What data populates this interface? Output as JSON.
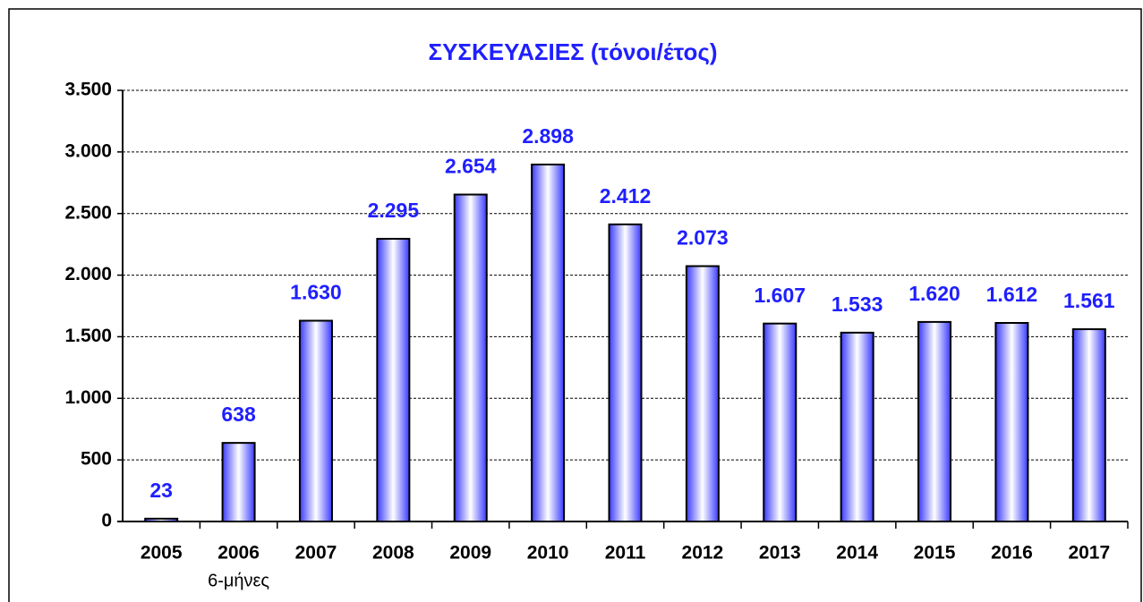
{
  "chart_data": {
    "type": "bar",
    "title": "ΣΥΣΚΕΥΑΣΙΕΣ (τόνοι/έτος)",
    "categories": [
      "2005",
      "2006",
      "2007",
      "2008",
      "2009",
      "2010",
      "2011",
      "2012",
      "2013",
      "2014",
      "2015",
      "2016",
      "2017"
    ],
    "category_note": "6-μήνες",
    "values": [
      23,
      638,
      1630,
      2295,
      2654,
      2898,
      2412,
      2073,
      1607,
      1533,
      1620,
      1612,
      1561
    ],
    "value_labels": [
      "23",
      "638",
      "1.630",
      "2.295",
      "2.654",
      "2.898",
      "2.412",
      "2.073",
      "1.607",
      "1.533",
      "1.620",
      "1.612",
      "1.561"
    ],
    "color": "#3a3aff",
    "ylim": [
      0,
      3500
    ],
    "yticks": [
      0,
      500,
      {
        "value": 1000,
        "label": "1.000"
      },
      {
        "value": 1500,
        "label": "1.500"
      },
      {
        "value": 2000,
        "label": "2.000"
      },
      {
        "value": 2500,
        "label": "2.500"
      },
      {
        "value": 3000,
        "label": "3.000"
      },
      {
        "value": 3500,
        "label": "3.500"
      }
    ],
    "grid": true
  }
}
